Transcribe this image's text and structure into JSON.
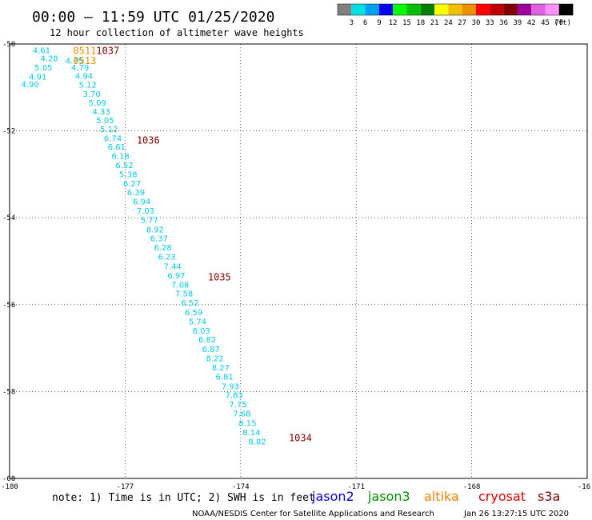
{
  "header": {
    "title": "00:00 – 11:59 UTC 01/25/2020",
    "subtitle": "12 hour collection of altimeter wave heights"
  },
  "colorbar": {
    "colors": [
      "#808080",
      "#00e0e0",
      "#00a0f0",
      "#0000f0",
      "#00ff00",
      "#00c000",
      "#008000",
      "#ffff00",
      "#f0c000",
      "#f09000",
      "#ff0000",
      "#c00000",
      "#800000",
      "#a000a0",
      "#e060e0",
      "#ff90ff",
      "#000000"
    ],
    "ticks": [
      "3",
      "6",
      "9",
      "12",
      "15",
      "18",
      "21",
      "24",
      "27",
      "30",
      "33",
      "36",
      "39",
      "42",
      "45",
      "70"
    ],
    "unit": "(ft)"
  },
  "axes": {
    "x_ticks": [
      "-180",
      "-177",
      "-174",
      "-171",
      "-168",
      "-16"
    ],
    "y_ticks": [
      "-50",
      "-52",
      "-54",
      "-56",
      "-58",
      "-60"
    ]
  },
  "chart_data": {
    "type": "scatter",
    "xlim": [
      -180,
      -165
    ],
    "ylim": [
      -60,
      -50
    ],
    "grid": "dotted",
    "point_color": "#00c8e8",
    "points": [
      {
        "x": -179.4,
        "y": -50.14,
        "label": "4.61"
      },
      {
        "x": -179.2,
        "y": -50.32,
        "label": "4.28"
      },
      {
        "x": -179.35,
        "y": -50.53,
        "label": "5.05"
      },
      {
        "x": -179.5,
        "y": -50.75,
        "label": "4.91"
      },
      {
        "x": -179.7,
        "y": -50.92,
        "label": "4.90"
      },
      {
        "x": -178.55,
        "y": -50.38,
        "label": "4.75"
      },
      {
        "x": -178.4,
        "y": -50.53,
        "label": "4.79"
      },
      {
        "x": -178.3,
        "y": -50.73,
        "label": "4.94"
      },
      {
        "x": -178.2,
        "y": -50.93,
        "label": "5.12"
      },
      {
        "x": -178.1,
        "y": -51.14,
        "label": "3.70"
      },
      {
        "x": -177.95,
        "y": -51.34,
        "label": "5.09"
      },
      {
        "x": -177.85,
        "y": -51.55,
        "label": "4.33"
      },
      {
        "x": -177.75,
        "y": -51.75,
        "label": "5.05"
      },
      {
        "x": -177.65,
        "y": -51.95,
        "label": "5.12"
      },
      {
        "x": -177.55,
        "y": -52.16,
        "label": "6.74"
      },
      {
        "x": -177.45,
        "y": -52.36,
        "label": "6.61"
      },
      {
        "x": -177.35,
        "y": -52.57,
        "label": "6.18"
      },
      {
        "x": -177.25,
        "y": -52.78,
        "label": "6.52"
      },
      {
        "x": -177.15,
        "y": -52.99,
        "label": "5.38"
      },
      {
        "x": -177.05,
        "y": -53.2,
        "label": "6.27"
      },
      {
        "x": -176.95,
        "y": -53.41,
        "label": "6.39"
      },
      {
        "x": -176.8,
        "y": -53.62,
        "label": "6.94"
      },
      {
        "x": -176.7,
        "y": -53.83,
        "label": "7.03"
      },
      {
        "x": -176.6,
        "y": -54.04,
        "label": "5.77"
      },
      {
        "x": -176.45,
        "y": -54.26,
        "label": "8.92"
      },
      {
        "x": -176.35,
        "y": -54.47,
        "label": "6.37"
      },
      {
        "x": -176.25,
        "y": -54.68,
        "label": "6.28"
      },
      {
        "x": -176.15,
        "y": -54.89,
        "label": "6.23"
      },
      {
        "x": -176.0,
        "y": -55.11,
        "label": "7.44"
      },
      {
        "x": -175.9,
        "y": -55.32,
        "label": "6.97"
      },
      {
        "x": -175.8,
        "y": -55.53,
        "label": "7.08"
      },
      {
        "x": -175.7,
        "y": -55.74,
        "label": "7.58"
      },
      {
        "x": -175.55,
        "y": -55.95,
        "label": "6.52"
      },
      {
        "x": -175.45,
        "y": -56.17,
        "label": "6.59"
      },
      {
        "x": -175.35,
        "y": -56.38,
        "label": "5.74"
      },
      {
        "x": -175.25,
        "y": -56.59,
        "label": "6.03"
      },
      {
        "x": -175.1,
        "y": -56.8,
        "label": "6.82"
      },
      {
        "x": -175.0,
        "y": -57.02,
        "label": "6.87"
      },
      {
        "x": -174.9,
        "y": -57.23,
        "label": "8.22"
      },
      {
        "x": -174.75,
        "y": -57.44,
        "label": "8.27"
      },
      {
        "x": -174.65,
        "y": -57.65,
        "label": "6.81"
      },
      {
        "x": -174.5,
        "y": -57.87,
        "label": "7.93"
      },
      {
        "x": -174.4,
        "y": -58.08,
        "label": "7.83"
      },
      {
        "x": -174.3,
        "y": -58.29,
        "label": "7.75"
      },
      {
        "x": -174.2,
        "y": -58.5,
        "label": "7.68"
      },
      {
        "x": -174.05,
        "y": -58.72,
        "label": "8.15"
      },
      {
        "x": -173.95,
        "y": -58.93,
        "label": "8.14"
      },
      {
        "x": -173.8,
        "y": -59.14,
        "label": "8.82"
      }
    ],
    "time_labels": [
      {
        "x": -178.35,
        "y": -50.14,
        "label": "0511",
        "color": "#e09000"
      },
      {
        "x": -178.35,
        "y": -50.37,
        "label": "0513",
        "color": "#e09000"
      },
      {
        "x": -177.75,
        "y": -50.14,
        "label": "1037",
        "color": "#800000"
      },
      {
        "x": -176.7,
        "y": -52.2,
        "label": "1036",
        "color": "#800000"
      },
      {
        "x": -174.85,
        "y": -55.35,
        "label": "1035",
        "color": "#800000"
      },
      {
        "x": -172.75,
        "y": -59.05,
        "label": "1034",
        "color": "#800000"
      }
    ]
  },
  "footer": {
    "note": "note: 1) Time is in UTC; 2) SWH is in feet",
    "satellites": [
      {
        "name": "jason2",
        "color": "#0000e0"
      },
      {
        "name": "jason3",
        "color": "#009000"
      },
      {
        "name": "altika",
        "color": "#f08000"
      },
      {
        "name": "cryosat",
        "color": "#e00000"
      },
      {
        "name": "s3a",
        "color": "#800000"
      }
    ],
    "credit": "NOAA/NESDIS Center for Satellite Applications and Research",
    "timestamp": "Jan 26 13:27:15 UTC 2020"
  }
}
